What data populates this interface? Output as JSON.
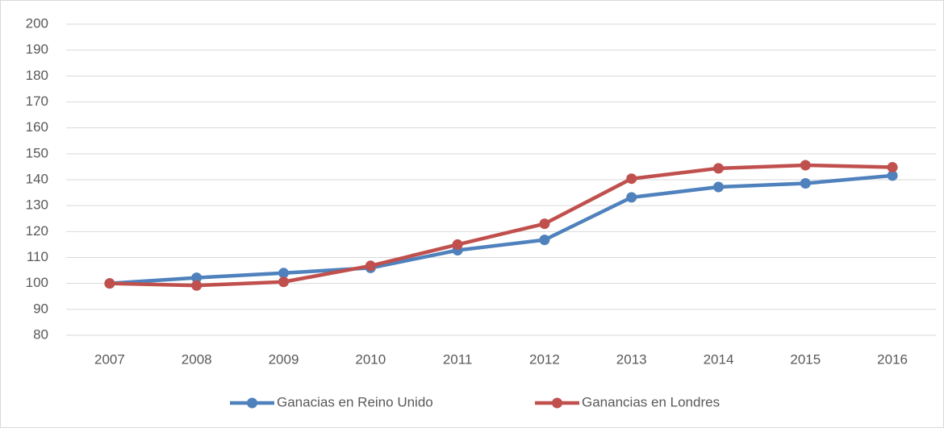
{
  "chart_data": {
    "type": "line",
    "categories": [
      "2007",
      "2008",
      "2009",
      "2010",
      "2011",
      "2012",
      "2013",
      "2014",
      "2015",
      "2016"
    ],
    "series": [
      {
        "name": "Ganacias en Reino Unido",
        "color": "#4f81bd",
        "values": [
          100,
          102.2,
          104,
          106,
          112.8,
          116.8,
          133.2,
          137.2,
          138.6,
          141.6
        ]
      },
      {
        "name": "Ganancias en Londres",
        "color": "#c0504d",
        "values": [
          100,
          99.2,
          100.6,
          106.8,
          115,
          123,
          140.4,
          144.4,
          145.6,
          144.8
        ]
      }
    ],
    "ylim": [
      80,
      200
    ],
    "yticks": [
      80,
      90,
      100,
      110,
      120,
      130,
      140,
      150,
      160,
      170,
      180,
      190,
      200
    ],
    "grid": true,
    "legend": "bottom"
  }
}
